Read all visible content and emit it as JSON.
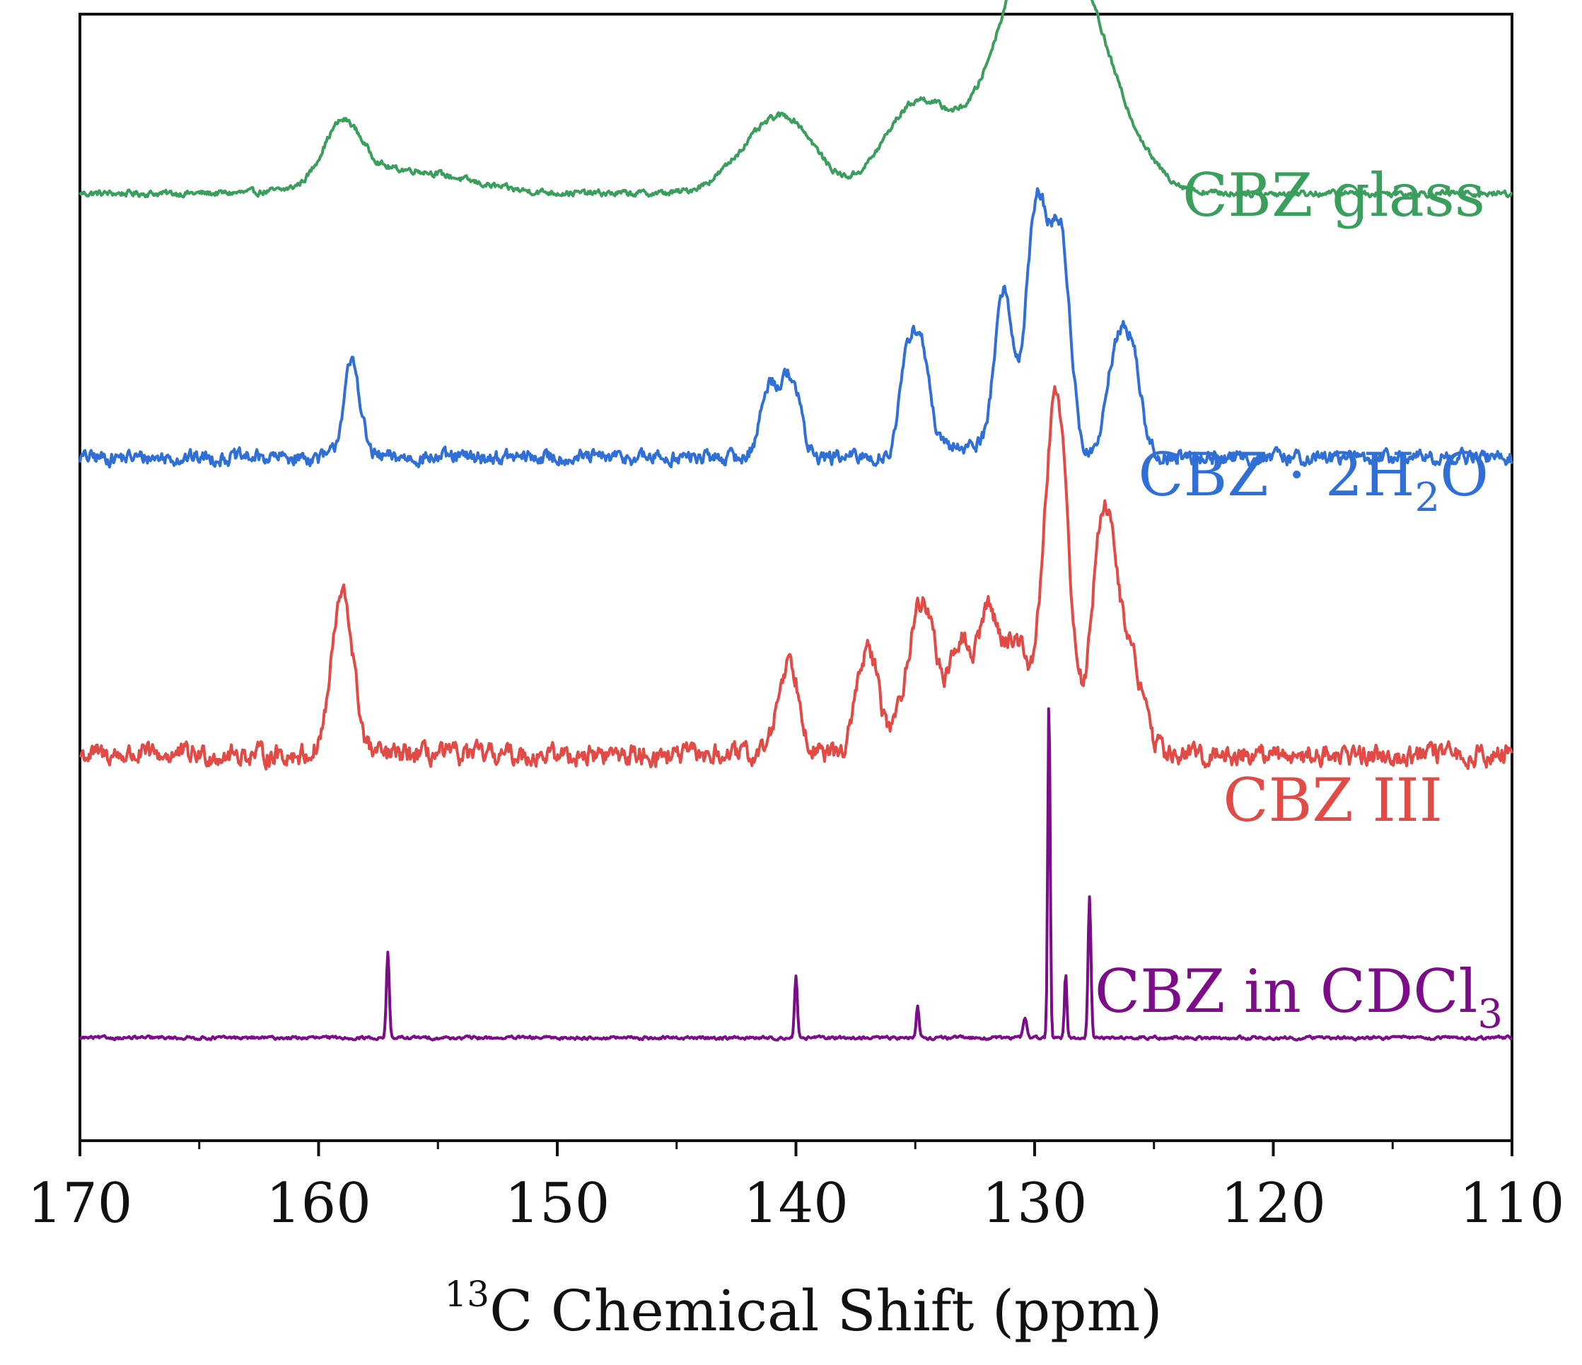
{
  "chart_data": {
    "type": "line",
    "title": "",
    "xlabel": {
      "superscript": "13",
      "text": "C Chemical Shift (ppm)"
    },
    "ylabel": "",
    "xlim": [
      170,
      110
    ],
    "x_reversed": true,
    "grid": false,
    "legend": "inline labels",
    "x_ticks": [
      "170",
      "160",
      "150",
      "140",
      "130",
      "120",
      "110"
    ],
    "x_tick_values": [
      170,
      160,
      150,
      140,
      130,
      120,
      110
    ],
    "x_minor_tick_values": [
      165,
      155,
      145,
      135,
      125,
      115
    ],
    "y_range": [
      0,
      4.5
    ],
    "series": [
      {
        "name": "CBZ glass",
        "label": {
          "main": "CBZ glass",
          "sub": "",
          "tail": ""
        },
        "color": "#3a9e5c",
        "baseline": 3.8,
        "noise": 0.012,
        "peaks": [
          {
            "x": 159.0,
            "height": 0.25,
            "width": 0.8
          },
          {
            "x": 156.5,
            "height": 0.1,
            "width": 2.5
          },
          {
            "x": 141.5,
            "height": 0.2,
            "width": 1.3
          },
          {
            "x": 140.0,
            "height": 0.2,
            "width": 1.1
          },
          {
            "x": 134.9,
            "height": 0.38,
            "width": 1.4
          },
          {
            "x": 130.5,
            "height": 0.72,
            "width": 1.6
          },
          {
            "x": 128.8,
            "height": 0.6,
            "width": 1.4
          },
          {
            "x": 127.0,
            "height": 0.3,
            "width": 1.5
          }
        ]
      },
      {
        "name": "CBZ·2H2O",
        "label": {
          "main": "CBZ · 2H",
          "sub": "2",
          "tail": "O"
        },
        "color": "#2f6fd6",
        "baseline": 2.68,
        "noise": 0.028,
        "peaks": [
          {
            "x": 158.6,
            "height": 0.4,
            "width": 0.35
          },
          {
            "x": 141.1,
            "height": 0.3,
            "width": 0.38
          },
          {
            "x": 140.2,
            "height": 0.34,
            "width": 0.38
          },
          {
            "x": 135.3,
            "height": 0.4,
            "width": 0.35
          },
          {
            "x": 134.7,
            "height": 0.38,
            "width": 0.35
          },
          {
            "x": 131.3,
            "height": 0.68,
            "width": 0.38
          },
          {
            "x": 129.9,
            "height": 1.08,
            "width": 0.45
          },
          {
            "x": 128.9,
            "height": 0.9,
            "width": 0.4
          },
          {
            "x": 126.6,
            "height": 0.42,
            "width": 0.4
          },
          {
            "x": 125.9,
            "height": 0.4,
            "width": 0.38
          },
          {
            "x": 132.8,
            "height": 0.05,
            "width": 1.2
          }
        ]
      },
      {
        "name": "CBZ III",
        "label": {
          "main": "CBZ III",
          "sub": "",
          "tail": ""
        },
        "color": "#e24a46",
        "baseline": 1.42,
        "noise": 0.04,
        "peaks": [
          {
            "x": 159.0,
            "height": 0.68,
            "width": 0.45
          },
          {
            "x": 140.3,
            "height": 0.4,
            "width": 0.45
          },
          {
            "x": 137.0,
            "height": 0.45,
            "width": 0.45
          },
          {
            "x": 134.7,
            "height": 0.65,
            "width": 0.65
          },
          {
            "x": 133.1,
            "height": 0.44,
            "width": 0.38
          },
          {
            "x": 132.0,
            "height": 0.58,
            "width": 0.45
          },
          {
            "x": 130.8,
            "height": 0.48,
            "width": 0.55
          },
          {
            "x": 129.1,
            "height": 1.55,
            "width": 0.5
          },
          {
            "x": 127.1,
            "height": 1.02,
            "width": 0.48
          },
          {
            "x": 126.0,
            "height": 0.4,
            "width": 0.55
          }
        ]
      },
      {
        "name": "CBZ in CDCl3",
        "label": {
          "main": "CBZ in CDCl",
          "sub": "3",
          "tail": ""
        },
        "color": "#7b0e88",
        "baseline": 0.22,
        "noise": 0.006,
        "peaks": [
          {
            "x": 157.1,
            "height": 0.36,
            "width": 0.06
          },
          {
            "x": 140.0,
            "height": 0.26,
            "width": 0.06
          },
          {
            "x": 134.9,
            "height": 0.14,
            "width": 0.06
          },
          {
            "x": 130.4,
            "height": 0.09,
            "width": 0.08
          },
          {
            "x": 129.4,
            "height": 1.45,
            "width": 0.05
          },
          {
            "x": 128.7,
            "height": 0.28,
            "width": 0.05
          },
          {
            "x": 127.7,
            "height": 0.6,
            "width": 0.06
          }
        ]
      }
    ]
  }
}
